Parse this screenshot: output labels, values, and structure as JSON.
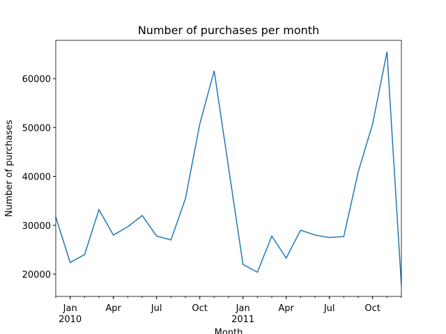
{
  "chart_data": {
    "type": "line",
    "title": "Number of purchases per month",
    "xlabel": "Month",
    "ylabel": "Number of purchases",
    "x": [
      "2009-12",
      "2010-01",
      "2010-02",
      "2010-03",
      "2010-04",
      "2010-05",
      "2010-06",
      "2010-07",
      "2010-08",
      "2010-09",
      "2010-10",
      "2010-11",
      "2010-12",
      "2011-01",
      "2011-02",
      "2011-03",
      "2011-04",
      "2011-05",
      "2011-06",
      "2011-07",
      "2011-08",
      "2011-09",
      "2011-10",
      "2011-11",
      "2011-12"
    ],
    "series": [
      {
        "name": "Number of purchases",
        "color": "#1f77b4",
        "values": [
          31700,
          22400,
          24000,
          33200,
          28000,
          29700,
          32000,
          27800,
          27000,
          35400,
          50700,
          61600,
          41800,
          22000,
          20400,
          27800,
          23300,
          29000,
          28000,
          27500,
          27700,
          40900,
          50700,
          65500,
          17700
        ]
      }
    ],
    "xlim": [
      "2009-12",
      "2011-12"
    ],
    "xticks": [
      {
        "value": "2010-01",
        "label": [
          "Jan",
          "2010"
        ]
      },
      {
        "value": "2010-04",
        "label": "Apr"
      },
      {
        "value": "2010-07",
        "label": "Jul"
      },
      {
        "value": "2010-10",
        "label": "Oct"
      },
      {
        "value": "2011-01",
        "label": [
          "Jan",
          "2011"
        ]
      },
      {
        "value": "2011-04",
        "label": "Apr"
      },
      {
        "value": "2011-07",
        "label": "Jul"
      },
      {
        "value": "2011-10",
        "label": "Oct"
      }
    ],
    "ylim": [
      15450,
      67830
    ],
    "yticks": [
      20000,
      30000,
      40000,
      50000,
      60000
    ],
    "grid": false
  }
}
